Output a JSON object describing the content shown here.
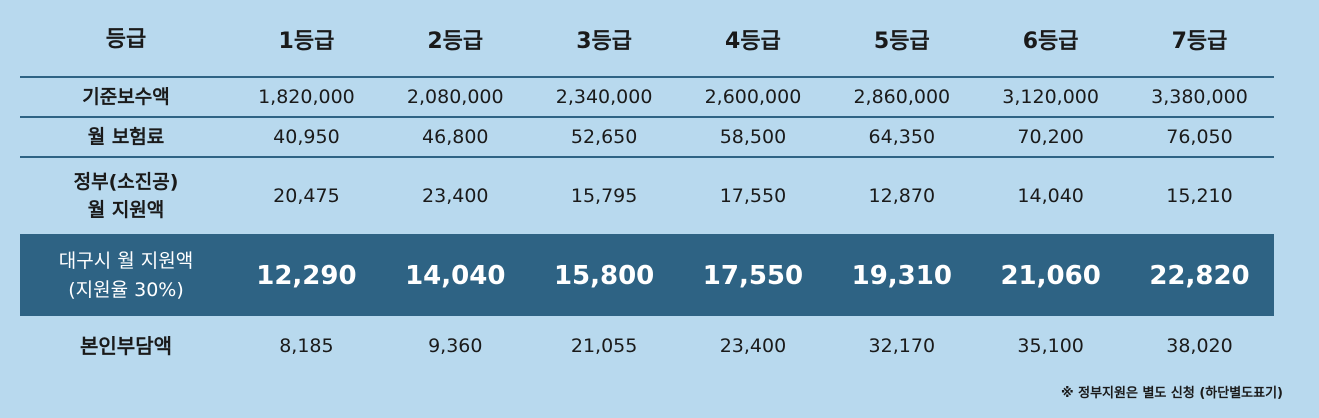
{
  "colors": {
    "background": "#b8d9ee",
    "highlight_row": "#2e6384",
    "highlight_text": "#ffffff",
    "text": "#1a1a1a",
    "divider": "#2e6384"
  },
  "header": {
    "label": "등급",
    "grades": [
      "1등급",
      "2등급",
      "3등급",
      "4등급",
      "5등급",
      "6등급",
      "7등급"
    ]
  },
  "rows": {
    "base_salary": {
      "label": "기준보수액",
      "values": [
        "1,820,000",
        "2,080,000",
        "2,340,000",
        "2,600,000",
        "2,860,000",
        "3,120,000",
        "3,380,000"
      ]
    },
    "monthly_premium": {
      "label": "월 보험료",
      "values": [
        "40,950",
        "46,800",
        "52,650",
        "58,500",
        "64,350",
        "70,200",
        "76,050"
      ]
    },
    "gov_support": {
      "label_line1": "정부(소진공)",
      "label_line2": "월 지원액",
      "values": [
        "20,475",
        "23,400",
        "15,795",
        "17,550",
        "12,870",
        "14,040",
        "15,210"
      ]
    },
    "daegu_support": {
      "label_line1": "대구시 월 지원액",
      "label_line2": "(지원율 30%)",
      "values": [
        "12,290",
        "14,040",
        "15,800",
        "17,550",
        "19,310",
        "21,060",
        "22,820"
      ]
    },
    "self_pay": {
      "label": "본인부담액",
      "values": [
        "8,185",
        "9,360",
        "21,055",
        "23,400",
        "32,170",
        "35,100",
        "38,020"
      ]
    }
  },
  "footnote": "※ 정부지원은 별도 신청 (하단별도표기)"
}
